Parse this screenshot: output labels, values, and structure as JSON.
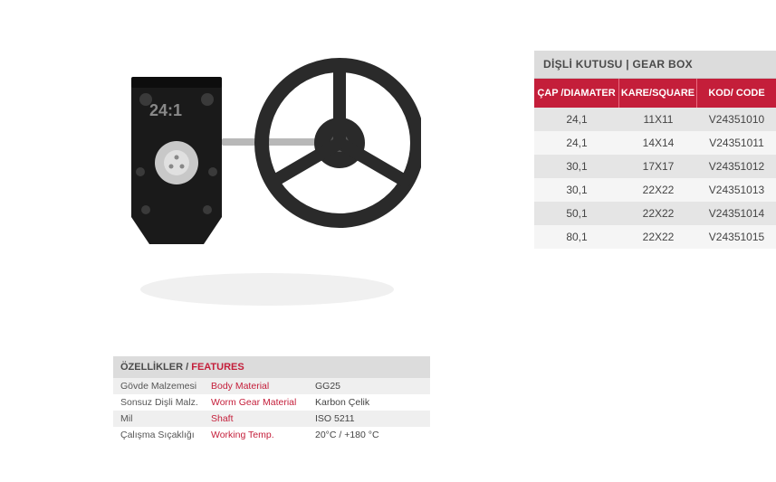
{
  "gearbox": {
    "title": "DİŞLİ KUTUSU | GEAR BOX",
    "headers": {
      "diameter": "ÇAP /DIAMATER",
      "square": "KARE/SQUARE",
      "code": "KOD/ CODE"
    },
    "header_bg": "#c41e3a",
    "header_fg": "#ffffff",
    "title_bg": "#dcdcdc",
    "row_odd_bg": "#e5e5e5",
    "row_even_bg": "#f5f5f5",
    "rows": [
      {
        "diameter": "24,1",
        "square": "11X11",
        "code": "V24351010"
      },
      {
        "diameter": "24,1",
        "square": "14X14",
        "code": "V24351011"
      },
      {
        "diameter": "30,1",
        "square": "17X17",
        "code": "V24351012"
      },
      {
        "diameter": "30,1",
        "square": "22X22",
        "code": "V24351013"
      },
      {
        "diameter": "50,1",
        "square": "22X22",
        "code": "V24351014"
      },
      {
        "diameter": "80,1",
        "square": "22X22",
        "code": "V24351015"
      }
    ]
  },
  "features": {
    "title_tr": "ÖZELLİKLER",
    "title_sep": " / ",
    "title_en": "FEATURES",
    "en_color": "#c41e3a",
    "rows": [
      {
        "tr": "Gövde Malzemesi",
        "en": "Body Material",
        "val": "GG25"
      },
      {
        "tr": "Sonsuz Dişli Malz.",
        "en": "Worm Gear Material",
        "val": "Karbon Çelik"
      },
      {
        "tr": "Mil",
        "en": "Shaft",
        "val": "ISO 5211"
      },
      {
        "tr": "Çalışma Sıçaklığı",
        "en": "Working Temp.",
        "val": "20°C / +180 °C"
      }
    ]
  },
  "image": {
    "gear_body_color": "#1a1a1a",
    "wheel_color": "#2a2a2a",
    "hub_color": "#c8c8c8",
    "shaft_color": "#b8b8b8",
    "label_text": "24:1",
    "label_color": "#888888"
  }
}
